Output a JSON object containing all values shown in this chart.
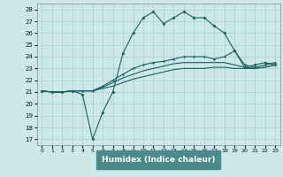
{
  "title": "",
  "xlabel": "Humidex (Indice chaleur)",
  "xlim": [
    -0.5,
    23.5
  ],
  "ylim": [
    16.5,
    28.5
  ],
  "yticks": [
    17,
    18,
    19,
    20,
    21,
    22,
    23,
    24,
    25,
    26,
    27,
    28
  ],
  "xticks": [
    0,
    1,
    2,
    3,
    4,
    5,
    6,
    7,
    8,
    9,
    10,
    11,
    12,
    13,
    14,
    15,
    16,
    17,
    18,
    19,
    20,
    21,
    22,
    23
  ],
  "bg_color": "#cce8e8",
  "grid_color": "#aacfcf",
  "line_color": "#1a6060",
  "xlabel_bg": "#4a8a8a",
  "line1_x": [
    0,
    1,
    2,
    3,
    4,
    5,
    6,
    7,
    8,
    9,
    10,
    11,
    12,
    13,
    14,
    15,
    16,
    17,
    18,
    19,
    20,
    21,
    22,
    23
  ],
  "line1_y": [
    21.1,
    21.0,
    21.0,
    21.1,
    20.8,
    17.0,
    19.3,
    21.0,
    24.3,
    26.0,
    27.3,
    27.8,
    26.8,
    27.3,
    27.8,
    27.3,
    27.3,
    26.6,
    26.0,
    24.5,
    23.1,
    23.3,
    23.5,
    23.3
  ],
  "line2_x": [
    0,
    1,
    2,
    3,
    4,
    5,
    6,
    7,
    8,
    9,
    10,
    11,
    12,
    13,
    14,
    15,
    16,
    17,
    18,
    19,
    20,
    21,
    22,
    23
  ],
  "line2_y": [
    21.1,
    21.0,
    21.0,
    21.1,
    21.1,
    21.1,
    21.5,
    22.0,
    22.5,
    23.0,
    23.3,
    23.5,
    23.6,
    23.8,
    24.0,
    24.0,
    24.0,
    23.8,
    24.0,
    24.5,
    23.3,
    23.1,
    23.3,
    23.5
  ],
  "line3_x": [
    0,
    1,
    2,
    3,
    4,
    5,
    6,
    7,
    8,
    9,
    10,
    11,
    12,
    13,
    14,
    15,
    16,
    17,
    18,
    19,
    20,
    21,
    22,
    23
  ],
  "line3_y": [
    21.1,
    21.0,
    21.0,
    21.1,
    21.1,
    21.1,
    21.4,
    21.8,
    22.2,
    22.5,
    22.8,
    23.0,
    23.2,
    23.4,
    23.5,
    23.5,
    23.5,
    23.5,
    23.5,
    23.3,
    23.1,
    23.0,
    23.1,
    23.3
  ],
  "line4_x": [
    0,
    1,
    2,
    3,
    4,
    5,
    6,
    7,
    8,
    9,
    10,
    11,
    12,
    13,
    14,
    15,
    16,
    17,
    18,
    19,
    20,
    21,
    22,
    23
  ],
  "line4_y": [
    21.1,
    21.0,
    21.0,
    21.1,
    21.1,
    21.1,
    21.3,
    21.5,
    21.8,
    22.1,
    22.3,
    22.5,
    22.7,
    22.9,
    23.0,
    23.0,
    23.0,
    23.1,
    23.1,
    23.0,
    23.0,
    23.0,
    23.1,
    23.3
  ]
}
